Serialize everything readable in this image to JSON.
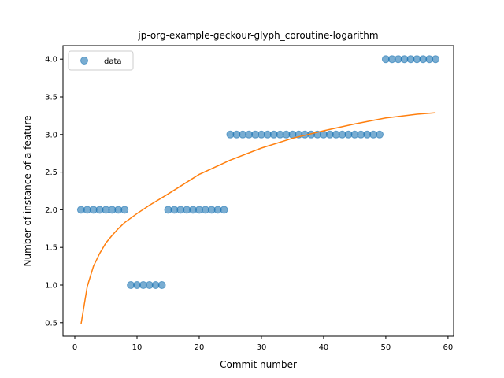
{
  "chart_data": {
    "type": "scatter",
    "title": "jp-org-example-geckour-glyph_coroutine-logarithm",
    "xlabel": "Commit number",
    "ylabel": "Number of instance of a feature",
    "xlim": [
      -1.9,
      60.9
    ],
    "ylim": [
      0.32,
      4.18
    ],
    "xticks": [
      0,
      10,
      20,
      30,
      40,
      50,
      60
    ],
    "yticks": [
      0.5,
      1.0,
      1.5,
      2.0,
      2.5,
      3.0,
      3.5,
      4.0
    ],
    "xtick_labels": [
      "0",
      "10",
      "20",
      "30",
      "40",
      "50",
      "60"
    ],
    "ytick_labels": [
      "0.5",
      "1.0",
      "1.5",
      "2.0",
      "2.5",
      "3.0",
      "3.5",
      "4.0"
    ],
    "grid": false,
    "legend": {
      "placement": "top-left",
      "entries": [
        "data"
      ]
    },
    "series": [
      {
        "name": "data",
        "kind": "scatter",
        "color": "#1f77b4",
        "x": [
          1,
          2,
          3,
          4,
          5,
          6,
          7,
          8,
          9,
          10,
          11,
          12,
          13,
          14,
          15,
          16,
          17,
          18,
          19,
          20,
          21,
          22,
          23,
          24,
          25,
          26,
          27,
          28,
          29,
          30,
          31,
          32,
          33,
          34,
          35,
          36,
          37,
          38,
          39,
          40,
          41,
          42,
          43,
          44,
          45,
          46,
          47,
          48,
          49,
          50,
          51,
          52,
          53,
          54,
          55,
          56,
          57,
          58
        ],
        "y": [
          2,
          2,
          2,
          2,
          2,
          2,
          2,
          2,
          1,
          1,
          1,
          1,
          1,
          1,
          2,
          2,
          2,
          2,
          2,
          2,
          2,
          2,
          2,
          2,
          3,
          3,
          3,
          3,
          3,
          3,
          3,
          3,
          3,
          3,
          3,
          3,
          3,
          3,
          3,
          3,
          3,
          3,
          3,
          3,
          3,
          3,
          3,
          3,
          3,
          4,
          4,
          4,
          4,
          4,
          4,
          4,
          4,
          4
        ]
      },
      {
        "kind": "line",
        "color": "#ff7f0e",
        "x": [
          1,
          2,
          3,
          4,
          5,
          6,
          7,
          8,
          10,
          12,
          15,
          20,
          25,
          30,
          35,
          40,
          45,
          50,
          55,
          58
        ],
        "y": [
          0.48,
          0.98,
          1.25,
          1.42,
          1.56,
          1.66,
          1.75,
          1.83,
          1.95,
          2.06,
          2.21,
          2.47,
          2.66,
          2.82,
          2.95,
          3.05,
          3.14,
          3.22,
          3.27,
          3.29
        ]
      }
    ]
  }
}
